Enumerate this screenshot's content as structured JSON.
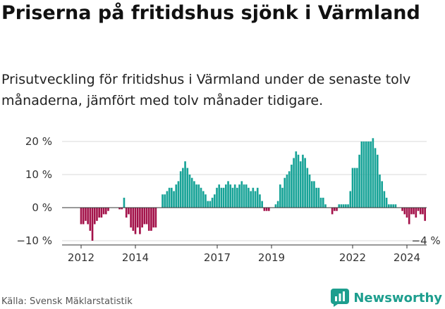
{
  "header": {
    "title": "Priserna på fritidshus sjönk i Värmland",
    "subtitle": "Prisutveckling för fritidshus i Värmland under de senaste tolv månaderna, jämfört med tolv månader tidigare."
  },
  "footer": {
    "source": "Källa: Svensk Mäklarstatistik",
    "brand": "Newsworthy"
  },
  "colors": {
    "positive": "#17a397",
    "negative": "#a3124a",
    "grid": "#d9d9d9",
    "brand": "#1d9e8e"
  },
  "chart_data": {
    "type": "bar",
    "title": "Priserna på fritidshus sjönk i Värmland",
    "xlabel": "",
    "ylabel": "",
    "ylim": [
      -11,
      21
    ],
    "y_ticks": [
      -10,
      0,
      10,
      20
    ],
    "y_tick_labels": [
      "−10 %",
      "0 %",
      "10 %",
      "20 %"
    ],
    "x_ticks": [
      2012,
      2014,
      2017,
      2019,
      2022,
      2024
    ],
    "x_tick_labels": [
      "2012",
      "2014",
      "2017",
      "2019",
      "2022",
      "2024"
    ],
    "x_start": 2012.0,
    "x_step": 0.08333,
    "annotation": "−4 %",
    "values": [
      -5,
      -5,
      -4,
      -5,
      -7,
      -10,
      -5,
      -4,
      -3,
      -3,
      -2,
      -2,
      -1,
      0,
      0,
      0,
      0,
      -0.5,
      -0.5,
      3,
      -3,
      -2,
      -6,
      -7,
      -8,
      -6,
      -8,
      -6,
      -5,
      -5,
      -7,
      -7,
      -6,
      -6,
      0,
      0,
      4,
      4,
      5,
      6,
      6,
      5,
      7,
      8,
      11,
      12,
      14,
      12,
      10,
      9,
      8,
      7,
      7,
      6,
      5,
      4,
      2,
      2,
      3,
      4,
      6,
      7,
      6,
      6,
      7,
      8,
      7,
      6,
      7,
      6,
      7,
      8,
      7,
      7,
      6,
      5,
      6,
      5,
      6,
      4,
      2,
      -1,
      -1,
      -1,
      0,
      0,
      1,
      2,
      7,
      6,
      9,
      10,
      11,
      13,
      15,
      17,
      16,
      14,
      16,
      15,
      12,
      10,
      8,
      8,
      6,
      6,
      3,
      3,
      1,
      0,
      0,
      -2,
      -1,
      -1,
      1,
      1,
      1,
      1,
      1,
      5,
      12,
      12,
      12,
      16,
      20,
      20,
      20,
      20,
      20,
      21,
      18,
      16,
      10,
      8,
      5,
      3,
      1,
      1,
      1,
      1,
      0,
      0,
      -1,
      -2,
      -3,
      -5,
      -2,
      -2,
      -3,
      -1,
      -2,
      -2,
      -4
    ]
  }
}
